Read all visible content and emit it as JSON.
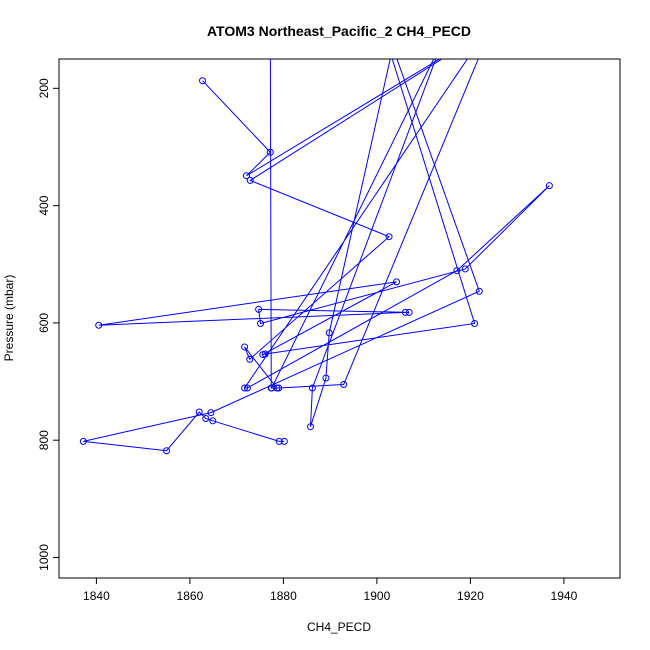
{
  "chart_data": {
    "type": "line",
    "title": "ATOM3 Northeast_Pacific_2 CH4_PECD",
    "xlabel": "CH4_PECD",
    "ylabel": "Pressure (mbar)",
    "xlim": [
      1832,
      1952
    ],
    "ylim": [
      1035,
      150
    ],
    "y_reversed": true,
    "x_ticks": [
      1840,
      1860,
      1880,
      1900,
      1920,
      1940
    ],
    "y_ticks": [
      200,
      400,
      600,
      800,
      1000
    ],
    "grid": false,
    "legend": "none",
    "line_color": "#0000ff",
    "marker": "open-circle",
    "series": [
      {
        "x": [
          1862.7,
          1877.2,
          1872.1,
          1924.8,
          1872.9,
          1902.6,
          1872.8,
          1871.7,
          1878.6,
          1877.4,
          1877.2,
          1902.9,
          1920.9,
          1876.1,
          1875.6,
          1904.2,
          1840.5,
          1906.1,
          1906.9,
          1874.7,
          1875.1,
          1918.9,
          1936.9,
          1917.1,
          1872.3,
          1871.7,
          1925.3,
          1892.9,
          1879.0,
          1877.5,
          1914.0,
          1886.2,
          1885.8,
          1889.1,
          1889.8,
          1903.4,
          1921.9,
          1864.5,
          1837.2,
          1855.0,
          1862.0,
          1863.4,
          1864.9,
          1879.1,
          1880.2
        ],
        "y": [
          187,
          309,
          349,
          95,
          357,
          453,
          662,
          641,
          711,
          711,
          110,
          140,
          601,
          653,
          654,
          530,
          604,
          582,
          582,
          577,
          601,
          508,
          366,
          511,
          711,
          711,
          80,
          705,
          711,
          711,
          120,
          711,
          777,
          694,
          617,
          130,
          546,
          753,
          802,
          818,
          752,
          763,
          767,
          802,
          802
        ]
      }
    ]
  }
}
